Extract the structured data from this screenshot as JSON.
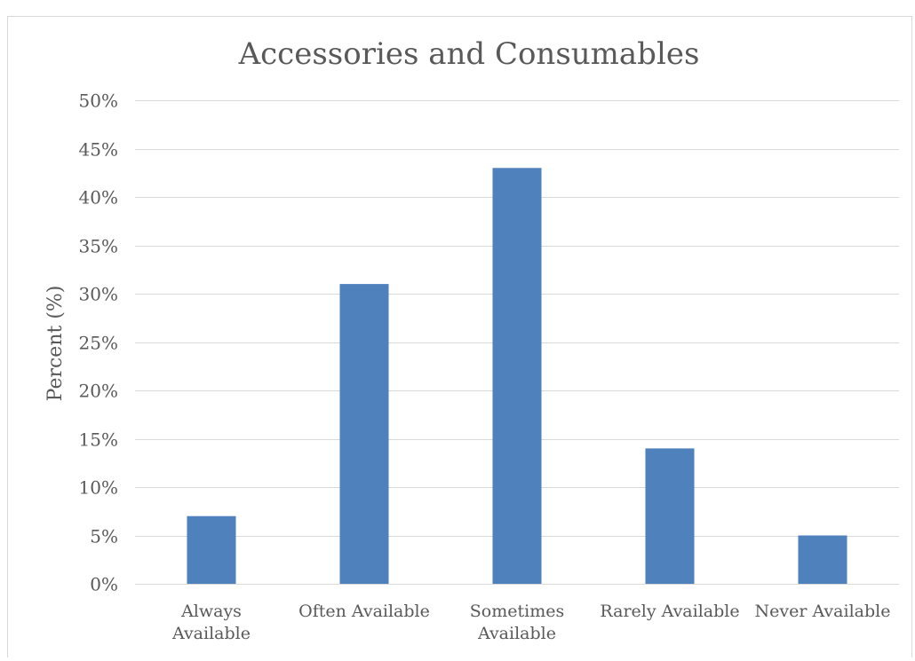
{
  "chart_data": {
    "type": "bar",
    "title": "Accessories and Consumables",
    "ylabel": "Percent (%)",
    "xlabel": "",
    "categories": [
      [
        "Always",
        "Available"
      ],
      [
        "Often Available"
      ],
      [
        "Sometimes",
        "Available"
      ],
      [
        "Rarely Available"
      ],
      [
        "Never Available"
      ]
    ],
    "values": [
      7,
      31,
      43,
      14,
      5
    ],
    "ylim": [
      0,
      50
    ],
    "ytick_step": 5,
    "ytick_suffix": "%",
    "grid": true,
    "legend": "none",
    "bar_color": "#4f81bd",
    "grid_color": "#d9d9d9",
    "text_color": "#595959"
  }
}
